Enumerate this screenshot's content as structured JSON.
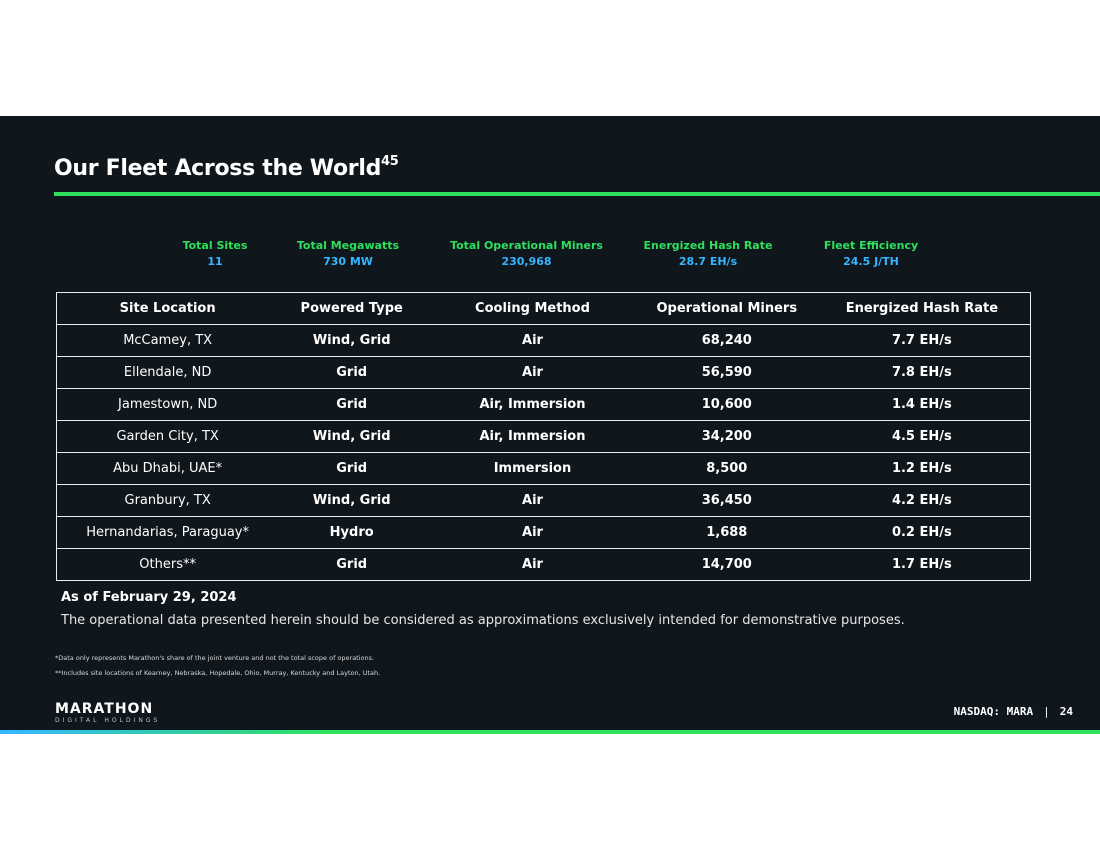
{
  "slide": {
    "title": "Our Fleet Across the World",
    "title_sup": "45"
  },
  "stats": [
    {
      "label": "Total Sites",
      "value": "11"
    },
    {
      "label": "Total Megawatts",
      "value": "730 MW"
    },
    {
      "label": "Total Operational Miners",
      "value": "230,968"
    },
    {
      "label": "Energized Hash Rate",
      "value": "28.7 EH/s"
    },
    {
      "label": "Fleet Efficiency",
      "value": "24.5 J/TH"
    }
  ],
  "table": {
    "headers": [
      "Site Location",
      "Powered Type",
      "Cooling Method",
      "Operational Miners",
      "Energized Hash Rate"
    ],
    "rows": [
      [
        "McCamey, TX",
        "Wind, Grid",
        "Air",
        "68,240",
        "7.7 EH/s"
      ],
      [
        "Ellendale, ND",
        "Grid",
        "Air",
        "56,590",
        "7.8 EH/s"
      ],
      [
        "Jamestown, ND",
        "Grid",
        "Air, Immersion",
        "10,600",
        "1.4 EH/s"
      ],
      [
        "Garden City, TX",
        "Wind, Grid",
        "Air, Immersion",
        "34,200",
        "4.5 EH/s"
      ],
      [
        "Abu Dhabi, UAE*",
        "Grid",
        "Immersion",
        "8,500",
        "1.2 EH/s"
      ],
      [
        "Granbury, TX",
        "Wind, Grid",
        "Air",
        "36,450",
        "4.2 EH/s"
      ],
      [
        "Hernandarias, Paraguay*",
        "Hydro",
        "Air",
        "1,688",
        "0.2 EH/s"
      ],
      [
        "Others**",
        "Grid",
        "Air",
        "14,700",
        "1.7 EH/s"
      ]
    ]
  },
  "notes": {
    "as_of": "As of February 29, 2024",
    "disclaimer": "The operational data presented herein should be considered as approximations exclusively intended for demonstrative purposes.",
    "footnote1": "*Data only represents Marathon's share of the joint venture and not the total scope of operations.",
    "footnote2": "**Includes site locations of Kearney, Nebraska, Hopedale, Ohio, Murray, Kentucky and Layton, Utah."
  },
  "footer": {
    "logo_word": "MARATHON",
    "logo_sub": "DIGITAL HOLDINGS",
    "ticker": "NASDAQ: MARA",
    "separator": "|",
    "page_number": "24"
  },
  "colors": {
    "background": "#0f161c",
    "accent_green": "#2fe05e",
    "accent_blue": "#35b6ff"
  }
}
